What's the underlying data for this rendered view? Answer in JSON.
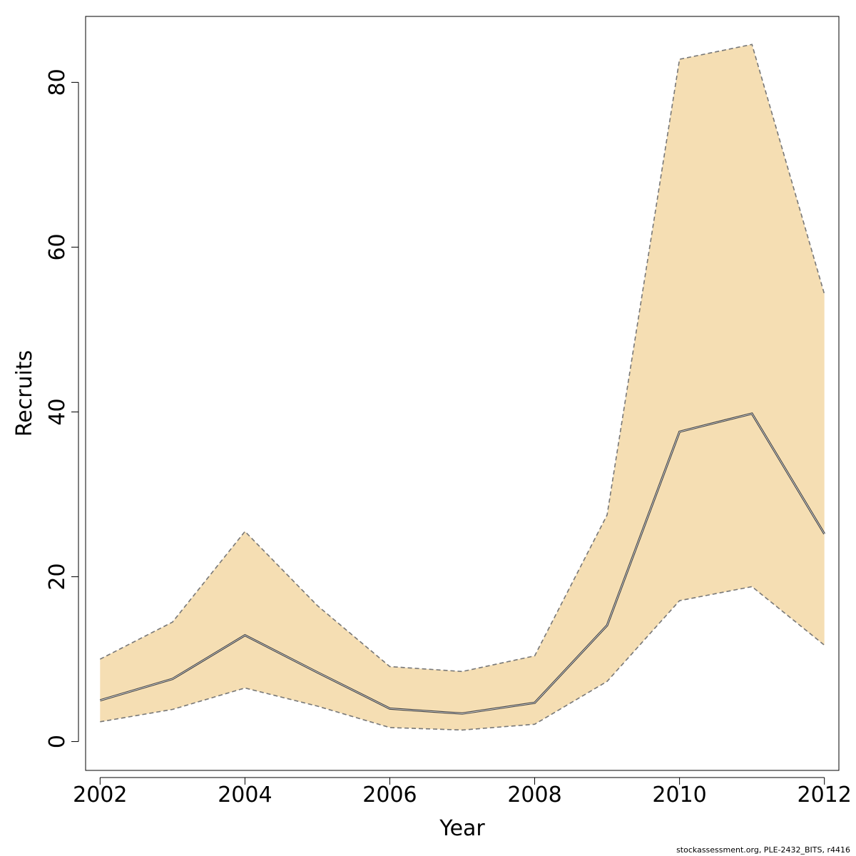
{
  "chart_data": {
    "type": "area",
    "xlabel": "Year",
    "ylabel": "Recruits",
    "xlim": [
      2001.8,
      2012.2
    ],
    "ylim": [
      -3.5,
      88
    ],
    "x_ticks": [
      2002,
      2004,
      2006,
      2008,
      2010,
      2012
    ],
    "y_ticks": [
      0,
      20,
      40,
      60,
      80
    ],
    "grid": false,
    "legend": "none",
    "x": [
      2002,
      2003,
      2004,
      2005,
      2006,
      2007,
      2008,
      2009,
      2010,
      2011,
      2012
    ],
    "series": [
      {
        "role": "upper",
        "values": [
          10.0,
          14.5,
          25.5,
          16.5,
          9.1,
          8.5,
          10.4,
          27.5,
          82.8,
          84.6,
          54.3
        ]
      },
      {
        "role": "estimate",
        "values": [
          5.0,
          7.6,
          12.9,
          8.4,
          4.0,
          3.4,
          4.7,
          14.1,
          37.6,
          39.8,
          25.2
        ]
      },
      {
        "role": "lower",
        "values": [
          2.4,
          3.9,
          6.5,
          4.3,
          1.7,
          1.4,
          2.1,
          7.3,
          17.1,
          18.8,
          11.7
        ]
      }
    ],
    "colors": {
      "band": "#f5deb3",
      "line": "#404040",
      "bounds": "#777777",
      "axis": "#000000"
    }
  },
  "footer": {
    "credit": "stockassessment.org, PLE-2432_BITS, r4416"
  }
}
